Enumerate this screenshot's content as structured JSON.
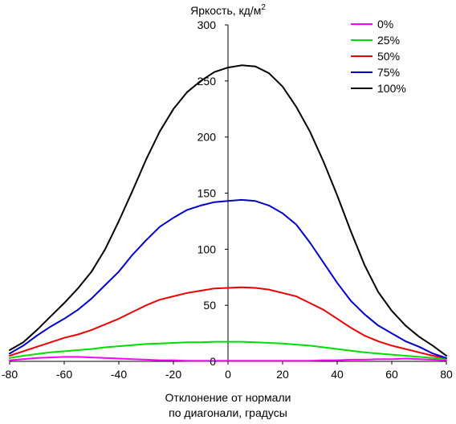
{
  "chart_data": {
    "type": "line",
    "title": "",
    "ylabel": "Яркость, кд/м",
    "ylabel_sup": "2",
    "xlabel_lines": [
      "Отклонение от нормали",
      "по диагонали, градусы"
    ],
    "xlim": [
      -80,
      80
    ],
    "ylim": [
      0,
      300
    ],
    "x_ticks": [
      -80,
      -60,
      -40,
      -20,
      0,
      20,
      40,
      60,
      80
    ],
    "y_ticks": [
      0,
      50,
      100,
      150,
      200,
      250,
      300
    ],
    "grid": false,
    "legend_position": "top-right",
    "x": [
      -80,
      -75,
      -70,
      -65,
      -60,
      -55,
      -50,
      -45,
      -40,
      -35,
      -30,
      -25,
      -20,
      -15,
      -10,
      -5,
      0,
      5,
      10,
      15,
      20,
      25,
      30,
      35,
      40,
      45,
      50,
      55,
      60,
      65,
      70,
      75,
      80
    ],
    "series": [
      {
        "name": "0%",
        "color": "#ff00ff",
        "values": [
          1,
          2,
          3,
          3.5,
          4,
          4,
          3.5,
          3,
          2.5,
          2,
          1.5,
          1,
          1,
          0.5,
          0.5,
          0.5,
          0.5,
          0.5,
          0.5,
          0.5,
          0.5,
          0.5,
          0.5,
          1,
          1,
          1.5,
          1.5,
          2,
          2,
          2.5,
          2,
          1.5,
          1
        ]
      },
      {
        "name": "25%",
        "color": "#00dd00",
        "values": [
          3,
          5,
          6.5,
          8,
          9,
          10,
          11,
          12.5,
          13.5,
          14.5,
          15.5,
          16,
          16.5,
          17,
          17,
          17.5,
          17.5,
          17.5,
          17,
          16.5,
          16,
          15,
          14,
          12.5,
          11,
          9.5,
          8,
          7,
          6,
          5,
          4,
          3,
          2.5
        ]
      },
      {
        "name": "50%",
        "color": "#ee0000",
        "values": [
          5,
          9,
          13,
          17,
          21,
          24,
          28,
          33,
          38,
          44,
          50,
          55,
          58,
          61,
          63,
          65,
          65.5,
          66,
          65.5,
          64,
          61,
          58,
          52,
          46,
          38,
          30,
          23,
          18,
          14,
          11,
          8,
          5,
          3
        ]
      },
      {
        "name": "75%",
        "color": "#0000cc",
        "values": [
          7,
          14,
          23,
          31,
          38,
          46,
          56,
          68,
          80,
          95,
          108,
          120,
          128,
          135,
          139,
          142,
          143,
          144,
          143,
          139,
          132,
          122,
          106,
          88,
          70,
          54,
          42,
          32,
          25,
          18,
          13,
          7,
          3
        ]
      },
      {
        "name": "100%",
        "color": "#000000",
        "values": [
          10,
          17,
          28,
          40,
          52,
          65,
          80,
          100,
          125,
          152,
          180,
          205,
          225,
          240,
          250,
          258,
          262,
          264,
          263,
          257,
          245,
          227,
          205,
          178,
          148,
          116,
          86,
          62,
          45,
          32,
          22,
          14,
          5
        ]
      }
    ]
  }
}
